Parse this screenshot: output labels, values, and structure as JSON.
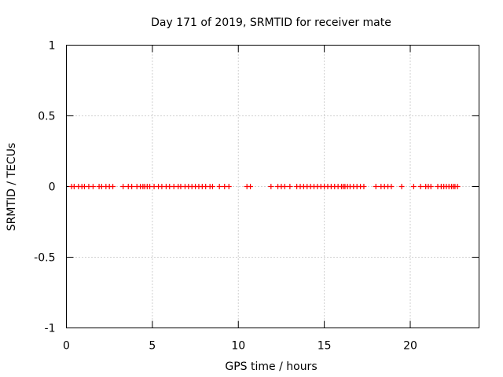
{
  "chart_data": {
    "type": "scatter",
    "title": "Day 171 of 2019, SRMTID for receiver mate",
    "xlabel": "GPS time / hours",
    "ylabel": "SRMTID / TECUs",
    "xlim": [
      0,
      24
    ],
    "ylim": [
      -1,
      1
    ],
    "x_ticks": [
      0,
      5,
      10,
      15,
      20
    ],
    "x_tick_labels": [
      "0",
      "5",
      "10",
      "15",
      "20"
    ],
    "y_ticks": [
      -1,
      -0.5,
      0,
      0.5,
      1
    ],
    "y_tick_labels": [
      "-1",
      "-0.5",
      "0",
      "0.5",
      "1"
    ],
    "grid": true,
    "marker_color": "#ff0000",
    "series": [
      {
        "name": "SRMTID",
        "x": [
          0.3,
          0.45,
          0.7,
          0.9,
          1.05,
          1.3,
          1.55,
          1.9,
          2.05,
          2.3,
          2.5,
          2.7,
          3.3,
          3.6,
          3.8,
          4.1,
          4.3,
          4.45,
          4.55,
          4.7,
          4.85,
          5.1,
          5.35,
          5.55,
          5.8,
          6.0,
          6.25,
          6.5,
          6.65,
          6.9,
          7.1,
          7.3,
          7.5,
          7.7,
          7.9,
          8.1,
          8.35,
          8.5,
          8.9,
          9.2,
          9.45,
          10.5,
          10.7,
          11.9,
          12.3,
          12.5,
          12.7,
          13.0,
          13.4,
          13.6,
          13.8,
          14.0,
          14.2,
          14.4,
          14.6,
          14.8,
          15.0,
          15.2,
          15.4,
          15.6,
          15.8,
          16.0,
          16.1,
          16.2,
          16.35,
          16.5,
          16.7,
          16.9,
          17.1,
          17.3,
          18.0,
          18.3,
          18.5,
          18.7,
          18.9,
          19.5,
          20.2,
          20.6,
          20.9,
          21.05,
          21.2,
          21.6,
          21.8,
          21.95,
          22.1,
          22.25,
          22.4,
          22.5,
          22.6,
          22.75
        ],
        "y": [
          0,
          0,
          0,
          0,
          0,
          0,
          0,
          0,
          0,
          0,
          0,
          0,
          0,
          0,
          0,
          0,
          0,
          0,
          0,
          0,
          0,
          0,
          0,
          0,
          0,
          0,
          0,
          0,
          0,
          0,
          0,
          0,
          0,
          0,
          0,
          0,
          0,
          0,
          0,
          0,
          0,
          0,
          0,
          0,
          0,
          0,
          0,
          0,
          0,
          0,
          0,
          0,
          0,
          0,
          0,
          0,
          0,
          0,
          0,
          0,
          0,
          0,
          0,
          0,
          0,
          0,
          0,
          0,
          0,
          0,
          0,
          0,
          0,
          0,
          0,
          0,
          0,
          0,
          0,
          0,
          0,
          0,
          0,
          0,
          0,
          0,
          0,
          0,
          0,
          0
        ]
      }
    ]
  }
}
